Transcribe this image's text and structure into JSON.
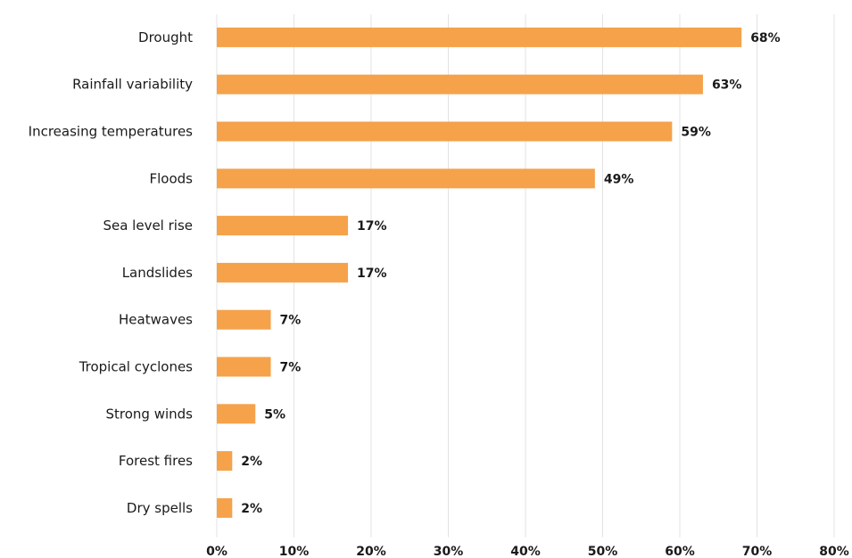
{
  "chart_data": {
    "type": "bar",
    "orientation": "horizontal",
    "categories": [
      "Drought",
      "Rainfall variability",
      "Increasing temperatures",
      "Floods",
      "Sea level rise",
      "Landslides",
      "Heatwaves",
      "Tropical cyclones",
      "Strong winds",
      "Forest fires",
      "Dry spells"
    ],
    "values": [
      68,
      63,
      59,
      49,
      17,
      17,
      7,
      7,
      5,
      2,
      2
    ],
    "data_labels": [
      "68%",
      "63%",
      "59%",
      "49%",
      "17%",
      "17%",
      "7%",
      "7%",
      "5%",
      "2%",
      "2%"
    ],
    "xticks": [
      "0%",
      "10%",
      "20%",
      "30%",
      "40%",
      "50%",
      "60%",
      "70%",
      "80%"
    ],
    "xlim": [
      0,
      80
    ],
    "grid": "vertical",
    "bar_color": "#f5a24b",
    "title": "",
    "xlabel": "",
    "ylabel": ""
  }
}
